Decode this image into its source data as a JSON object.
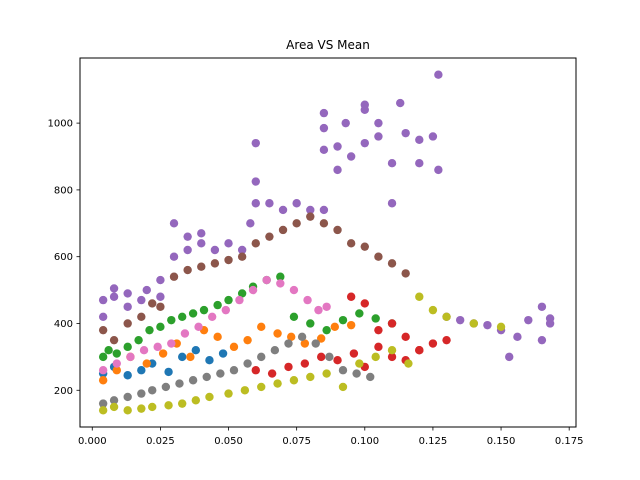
{
  "chart_data": {
    "type": "scatter",
    "title": "Area VS Mean",
    "xlabel": "",
    "ylabel": "",
    "xlim": [
      -0.0045,
      0.1775
    ],
    "ylim": [
      90,
      1195
    ],
    "xticks": [
      0.0,
      0.025,
      0.05,
      0.075,
      0.1,
      0.125,
      0.15,
      0.175
    ],
    "xtick_labels": [
      "0.000",
      "0.025",
      "0.050",
      "0.075",
      "0.100",
      "0.125",
      "0.150",
      "0.175"
    ],
    "yticks": [
      200,
      400,
      600,
      800,
      1000
    ],
    "ytick_labels": [
      "200",
      "400",
      "600",
      "800",
      "1000"
    ],
    "grid": false,
    "legend": "none",
    "series": [
      {
        "color": "#1f77b4",
        "points": [
          [
            0.004,
            250
          ],
          [
            0.008,
            270
          ],
          [
            0.013,
            245
          ],
          [
            0.018,
            260
          ],
          [
            0.022,
            280
          ],
          [
            0.028,
            255
          ],
          [
            0.033,
            300
          ],
          [
            0.038,
            320
          ],
          [
            0.043,
            290
          ],
          [
            0.048,
            310
          ]
        ]
      },
      {
        "color": "#ff7f0e",
        "points": [
          [
            0.004,
            230
          ],
          [
            0.009,
            260
          ],
          [
            0.014,
            300
          ],
          [
            0.02,
            280
          ],
          [
            0.026,
            310
          ],
          [
            0.031,
            340
          ],
          [
            0.036,
            300
          ],
          [
            0.041,
            380
          ],
          [
            0.046,
            360
          ],
          [
            0.052,
            330
          ],
          [
            0.057,
            350
          ],
          [
            0.062,
            390
          ],
          [
            0.068,
            370
          ],
          [
            0.073,
            360
          ],
          [
            0.078,
            340
          ],
          [
            0.084,
            355
          ],
          [
            0.089,
            390
          ],
          [
            0.095,
            395
          ]
        ]
      },
      {
        "color": "#2ca02c",
        "points": [
          [
            0.004,
            300
          ],
          [
            0.006,
            320
          ],
          [
            0.009,
            310
          ],
          [
            0.013,
            330
          ],
          [
            0.017,
            350
          ],
          [
            0.021,
            380
          ],
          [
            0.025,
            390
          ],
          [
            0.029,
            410
          ],
          [
            0.033,
            420
          ],
          [
            0.037,
            430
          ],
          [
            0.041,
            440
          ],
          [
            0.046,
            455
          ],
          [
            0.05,
            470
          ],
          [
            0.055,
            490
          ],
          [
            0.059,
            510
          ],
          [
            0.064,
            530
          ],
          [
            0.069,
            540
          ],
          [
            0.074,
            420
          ],
          [
            0.08,
            400
          ],
          [
            0.086,
            380
          ],
          [
            0.092,
            410
          ],
          [
            0.098,
            430
          ],
          [
            0.104,
            415
          ],
          [
            0.11,
            400
          ]
        ]
      },
      {
        "color": "#d62728",
        "points": [
          [
            0.06,
            260
          ],
          [
            0.066,
            250
          ],
          [
            0.072,
            270
          ],
          [
            0.078,
            280
          ],
          [
            0.084,
            300
          ],
          [
            0.09,
            290
          ],
          [
            0.096,
            310
          ],
          [
            0.1,
            270
          ],
          [
            0.105,
            330
          ],
          [
            0.11,
            300
          ],
          [
            0.115,
            290
          ],
          [
            0.12,
            320
          ],
          [
            0.125,
            340
          ],
          [
            0.13,
            350
          ],
          [
            0.095,
            480
          ],
          [
            0.1,
            460
          ],
          [
            0.105,
            380
          ],
          [
            0.11,
            400
          ],
          [
            0.115,
            360
          ],
          [
            0.12,
            320
          ]
        ]
      },
      {
        "color": "#9467bd",
        "points": [
          [
            0.004,
            420
          ],
          [
            0.004,
            470
          ],
          [
            0.008,
            480
          ],
          [
            0.008,
            505
          ],
          [
            0.013,
            450
          ],
          [
            0.013,
            490
          ],
          [
            0.018,
            470
          ],
          [
            0.02,
            500
          ],
          [
            0.025,
            530
          ],
          [
            0.025,
            480
          ],
          [
            0.03,
            600
          ],
          [
            0.03,
            700
          ],
          [
            0.035,
            660
          ],
          [
            0.035,
            620
          ],
          [
            0.04,
            640
          ],
          [
            0.04,
            670
          ],
          [
            0.045,
            620
          ],
          [
            0.05,
            640
          ],
          [
            0.055,
            620
          ],
          [
            0.058,
            700
          ],
          [
            0.06,
            760
          ],
          [
            0.06,
            940
          ],
          [
            0.06,
            825
          ],
          [
            0.065,
            760
          ],
          [
            0.07,
            740
          ],
          [
            0.075,
            760
          ],
          [
            0.08,
            740
          ],
          [
            0.085,
            740
          ],
          [
            0.085,
            920
          ],
          [
            0.085,
            1030
          ],
          [
            0.085,
            985
          ],
          [
            0.09,
            930
          ],
          [
            0.09,
            860
          ],
          [
            0.093,
            1000
          ],
          [
            0.095,
            900
          ],
          [
            0.1,
            940
          ],
          [
            0.1,
            1055
          ],
          [
            0.1,
            1040
          ],
          [
            0.105,
            1000
          ],
          [
            0.105,
            960
          ],
          [
            0.11,
            880
          ],
          [
            0.11,
            760
          ],
          [
            0.113,
            1060
          ],
          [
            0.115,
            970
          ],
          [
            0.12,
            950
          ],
          [
            0.12,
            880
          ],
          [
            0.125,
            960
          ],
          [
            0.127,
            1145
          ],
          [
            0.127,
            860
          ],
          [
            0.13,
            420
          ],
          [
            0.135,
            410
          ],
          [
            0.14,
            400
          ],
          [
            0.145,
            395
          ],
          [
            0.15,
            380
          ],
          [
            0.153,
            300
          ],
          [
            0.156,
            360
          ],
          [
            0.16,
            410
          ],
          [
            0.165,
            450
          ],
          [
            0.165,
            350
          ],
          [
            0.168,
            415
          ],
          [
            0.168,
            400
          ]
        ]
      },
      {
        "color": "#8c564b",
        "points": [
          [
            0.004,
            380
          ],
          [
            0.008,
            350
          ],
          [
            0.013,
            400
          ],
          [
            0.018,
            420
          ],
          [
            0.022,
            460
          ],
          [
            0.025,
            450
          ],
          [
            0.03,
            540
          ],
          [
            0.035,
            560
          ],
          [
            0.04,
            570
          ],
          [
            0.045,
            580
          ],
          [
            0.05,
            590
          ],
          [
            0.055,
            600
          ],
          [
            0.06,
            640
          ],
          [
            0.065,
            660
          ],
          [
            0.07,
            680
          ],
          [
            0.075,
            700
          ],
          [
            0.08,
            720
          ],
          [
            0.085,
            700
          ],
          [
            0.09,
            680
          ],
          [
            0.095,
            640
          ],
          [
            0.1,
            630
          ],
          [
            0.105,
            600
          ],
          [
            0.11,
            580
          ],
          [
            0.115,
            550
          ]
        ]
      },
      {
        "color": "#e377c2",
        "points": [
          [
            0.004,
            260
          ],
          [
            0.009,
            280
          ],
          [
            0.014,
            300
          ],
          [
            0.019,
            320
          ],
          [
            0.024,
            330
          ],
          [
            0.029,
            340
          ],
          [
            0.034,
            370
          ],
          [
            0.039,
            390
          ],
          [
            0.044,
            420
          ],
          [
            0.049,
            440
          ],
          [
            0.054,
            470
          ],
          [
            0.059,
            500
          ],
          [
            0.064,
            530
          ],
          [
            0.069,
            520
          ],
          [
            0.074,
            500
          ],
          [
            0.079,
            470
          ],
          [
            0.083,
            440
          ],
          [
            0.086,
            450
          ]
        ]
      },
      {
        "color": "#7f7f7f",
        "points": [
          [
            0.004,
            160
          ],
          [
            0.008,
            170
          ],
          [
            0.013,
            180
          ],
          [
            0.018,
            190
          ],
          [
            0.022,
            200
          ],
          [
            0.027,
            210
          ],
          [
            0.032,
            220
          ],
          [
            0.037,
            230
          ],
          [
            0.042,
            240
          ],
          [
            0.047,
            250
          ],
          [
            0.052,
            260
          ],
          [
            0.057,
            280
          ],
          [
            0.062,
            300
          ],
          [
            0.067,
            320
          ],
          [
            0.072,
            340
          ],
          [
            0.077,
            360
          ],
          [
            0.082,
            340
          ],
          [
            0.087,
            300
          ],
          [
            0.092,
            260
          ],
          [
            0.097,
            250
          ],
          [
            0.102,
            240
          ]
        ]
      },
      {
        "color": "#bcbd22",
        "points": [
          [
            0.004,
            140
          ],
          [
            0.008,
            150
          ],
          [
            0.013,
            140
          ],
          [
            0.018,
            145
          ],
          [
            0.022,
            150
          ],
          [
            0.028,
            155
          ],
          [
            0.033,
            160
          ],
          [
            0.038,
            170
          ],
          [
            0.043,
            180
          ],
          [
            0.05,
            190
          ],
          [
            0.056,
            200
          ],
          [
            0.062,
            210
          ],
          [
            0.068,
            220
          ],
          [
            0.074,
            230
          ],
          [
            0.08,
            240
          ],
          [
            0.086,
            250
          ],
          [
            0.092,
            210
          ],
          [
            0.098,
            280
          ],
          [
            0.104,
            300
          ],
          [
            0.11,
            320
          ],
          [
            0.116,
            280
          ],
          [
            0.12,
            480
          ],
          [
            0.125,
            440
          ],
          [
            0.13,
            420
          ],
          [
            0.14,
            400
          ],
          [
            0.15,
            390
          ]
        ]
      }
    ]
  }
}
